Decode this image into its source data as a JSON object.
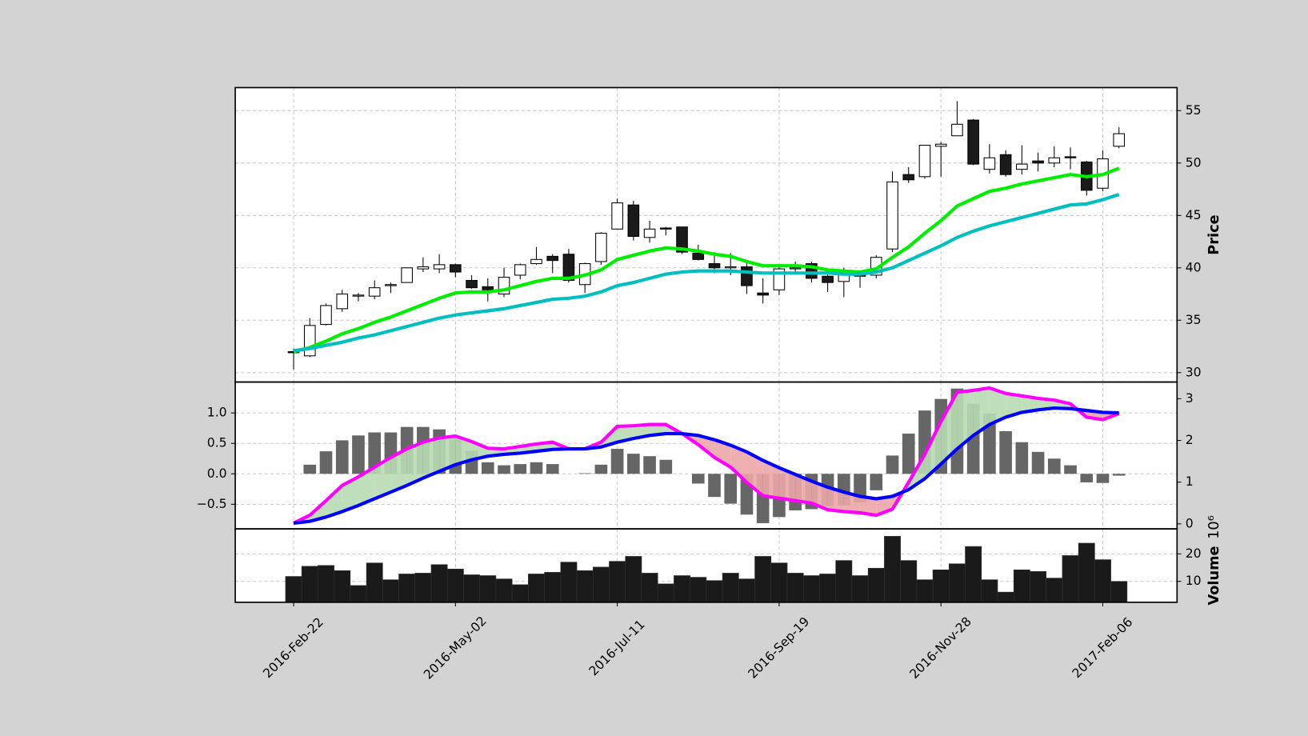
{
  "chart_data": [
    {
      "type": "candlestick",
      "ylabel": "Price",
      "open": [
        32.0,
        31.6,
        34.6,
        36.1,
        37.3,
        37.3,
        38.3,
        38.6,
        39.9,
        39.9,
        40.3,
        38.8,
        38.2,
        37.5,
        39.3,
        40.4,
        41.1,
        41.3,
        38.4,
        40.6,
        43.7,
        46.0,
        42.9,
        43.8,
        43.9,
        41.4,
        40.4,
        40.0,
        40.1,
        37.6,
        37.9,
        39.9,
        40.4,
        39.2,
        38.7,
        39.4,
        39.3,
        41.8,
        48.9,
        48.7,
        51.6,
        52.6,
        54.1,
        49.4,
        50.8,
        49.4,
        50.2,
        50.0,
        50.6,
        50.1,
        47.6,
        51.6
      ],
      "high": [
        32.3,
        35.2,
        36.6,
        37.9,
        37.6,
        38.8,
        38.6,
        40.0,
        41.0,
        41.3,
        40.4,
        39.3,
        39.0,
        40.0,
        40.4,
        42.0,
        41.3,
        41.8,
        40.5,
        43.4,
        46.6,
        46.4,
        44.5,
        43.9,
        43.9,
        42.2,
        41.5,
        41.4,
        40.6,
        39.0,
        40.2,
        40.6,
        40.6,
        39.5,
        40.0,
        39.7,
        41.2,
        49.2,
        49.6,
        51.7,
        52.0,
        55.9,
        54.2,
        51.8,
        51.2,
        51.7,
        51.0,
        51.6,
        51.5,
        50.2,
        51.2,
        53.4
      ],
      "low": [
        30.3,
        31.5,
        34.5,
        35.8,
        36.8,
        37.0,
        37.6,
        38.6,
        39.6,
        39.5,
        39.1,
        38.0,
        36.8,
        37.2,
        38.9,
        40.3,
        39.5,
        38.6,
        37.6,
        40.3,
        43.7,
        42.6,
        42.4,
        43.1,
        41.3,
        40.7,
        39.5,
        39.3,
        37.5,
        36.6,
        37.4,
        39.6,
        38.6,
        37.7,
        37.2,
        38.1,
        39.0,
        41.5,
        48.1,
        48.5,
        48.7,
        52.6,
        49.8,
        49.0,
        48.7,
        48.9,
        49.2,
        49.6,
        49.4,
        46.9,
        47.3,
        51.4
      ],
      "close": [
        31.9,
        34.5,
        36.4,
        37.5,
        37.4,
        38.1,
        38.4,
        40.0,
        40.1,
        40.3,
        39.6,
        38.1,
        37.9,
        39.1,
        40.3,
        40.8,
        40.7,
        38.8,
        40.4,
        43.3,
        46.2,
        43.0,
        43.7,
        43.7,
        41.5,
        40.8,
        40.0,
        40.1,
        38.3,
        37.4,
        39.9,
        40.0,
        39.0,
        38.6,
        39.6,
        39.2,
        41.0,
        48.2,
        48.4,
        51.7,
        51.8,
        53.7,
        49.9,
        50.5,
        48.9,
        49.9,
        50.0,
        50.5,
        50.5,
        47.4,
        50.4,
        52.8
      ],
      "up_color": "#ffffff",
      "down_color": "#1a1a1a",
      "series": [
        {
          "color": "#00ee00",
          "values": [
            32.0,
            32.4,
            33.0,
            33.7,
            34.2,
            34.8,
            35.3,
            35.9,
            36.5,
            37.1,
            37.6,
            37.7,
            37.7,
            37.9,
            38.3,
            38.7,
            39.0,
            39.0,
            39.3,
            39.8,
            40.8,
            41.2,
            41.6,
            41.9,
            41.8,
            41.6,
            41.3,
            41.1,
            40.6,
            40.2,
            40.2,
            40.2,
            40.1,
            39.8,
            39.7,
            39.6,
            39.9,
            41.0,
            42.0,
            43.3,
            44.5,
            45.9,
            46.6,
            47.3,
            47.6,
            48.0,
            48.3,
            48.6,
            48.9,
            48.7,
            48.9,
            49.5
          ]
        },
        {
          "color": "#00bfbf",
          "values": [
            32.1,
            32.3,
            32.6,
            32.9,
            33.3,
            33.6,
            34.0,
            34.4,
            34.8,
            35.2,
            35.5,
            35.7,
            35.9,
            36.1,
            36.4,
            36.7,
            37.0,
            37.1,
            37.3,
            37.7,
            38.3,
            38.6,
            39.0,
            39.4,
            39.6,
            39.7,
            39.7,
            39.7,
            39.6,
            39.5,
            39.5,
            39.5,
            39.5,
            39.5,
            39.4,
            39.4,
            39.6,
            40.0,
            40.7,
            41.4,
            42.1,
            42.9,
            43.5,
            44.0,
            44.4,
            44.8,
            45.2,
            45.6,
            46.0,
            46.1,
            46.5,
            47.0
          ]
        }
      ],
      "ylim": [
        29.1,
        57.2
      ],
      "yticks": [
        30,
        35,
        40,
        45,
        50,
        55
      ],
      "grid": true
    },
    {
      "type": "macd",
      "series": [
        {
          "color": "#ff00ff",
          "values": [
            -0.81,
            -0.68,
            -0.44,
            -0.19,
            -0.05,
            0.11,
            0.27,
            0.41,
            0.52,
            0.59,
            0.62,
            0.53,
            0.42,
            0.41,
            0.45,
            0.49,
            0.52,
            0.41,
            0.41,
            0.52,
            0.78,
            0.79,
            0.81,
            0.81,
            0.66,
            0.48,
            0.27,
            0.11,
            -0.14,
            -0.36,
            -0.4,
            -0.44,
            -0.48,
            -0.59,
            -0.62,
            -0.64,
            -0.68,
            -0.58,
            -0.14,
            0.32,
            0.86,
            1.34,
            1.37,
            1.41,
            1.32,
            1.28,
            1.24,
            1.21,
            1.15,
            0.93,
            0.89,
            0.99
          ]
        },
        {
          "color": "#0000ff",
          "values": [
            -0.81,
            -0.78,
            -0.71,
            -0.62,
            -0.52,
            -0.41,
            -0.3,
            -0.19,
            -0.07,
            0.04,
            0.15,
            0.23,
            0.29,
            0.32,
            0.34,
            0.37,
            0.4,
            0.41,
            0.41,
            0.44,
            0.52,
            0.58,
            0.63,
            0.66,
            0.66,
            0.63,
            0.56,
            0.47,
            0.36,
            0.22,
            0.1,
            -0.01,
            -0.12,
            -0.22,
            -0.3,
            -0.37,
            -0.41,
            -0.37,
            -0.26,
            -0.08,
            0.16,
            0.41,
            0.63,
            0.81,
            0.93,
            1.01,
            1.05,
            1.08,
            1.07,
            1.04,
            1.01,
            1.0
          ]
        }
      ],
      "histogram": {
        "color": "#666666",
        "values": [
          0,
          0.15,
          0.37,
          0.55,
          0.63,
          0.68,
          0.68,
          0.77,
          0.77,
          0.73,
          0.6,
          0.38,
          0.19,
          0.14,
          0.16,
          0.19,
          0.16,
          0,
          0.01,
          0.15,
          0.41,
          0.33,
          0.29,
          0.23,
          0,
          -0.16,
          -0.38,
          -0.49,
          -0.67,
          -0.81,
          -0.71,
          -0.6,
          -0.58,
          -0.53,
          -0.52,
          -0.47,
          -0.27,
          0.3,
          0.66,
          1.04,
          1.23,
          1.4,
          1.15,
          0.99,
          0.7,
          0.52,
          0.36,
          0.25,
          0.14,
          -0.14,
          -0.15,
          -0.03
        ]
      },
      "fill_colors": [
        "#b7dcb2",
        "#eba6a6"
      ],
      "ylim": [
        -0.904,
        1.507
      ],
      "yticks": [
        {
          "value": 1.0,
          "label": "1.0"
        },
        {
          "value": 0.5,
          "label": "0.5"
        },
        {
          "value": 0.0,
          "label": "0.0"
        },
        {
          "value": -0.5,
          "label": "−0.5"
        }
      ],
      "y2lim": [
        -0.12,
        3.4
      ],
      "y2ticks": [
        0,
        1,
        2,
        3
      ],
      "grid": true
    },
    {
      "type": "bar",
      "ylabel": "Volume",
      "offset_label": "10⁶",
      "categories": [
        "2016-Feb-22",
        null,
        null,
        null,
        null,
        null,
        null,
        null,
        null,
        null,
        "2016-May-02",
        null,
        null,
        null,
        null,
        null,
        null,
        null,
        null,
        null,
        "2016-Jul-11",
        null,
        null,
        null,
        null,
        null,
        null,
        null,
        null,
        null,
        "2016-Sep-19",
        null,
        null,
        null,
        null,
        null,
        null,
        null,
        null,
        null,
        "2016-Nov-28",
        null,
        null,
        null,
        null,
        null,
        null,
        null,
        null,
        null,
        "2017-Feb-06",
        null
      ],
      "values": [
        11.8,
        15.5,
        15.8,
        13.9,
        8.5,
        16.7,
        10.6,
        12.7,
        13.0,
        16.1,
        14.5,
        12.4,
        12.1,
        10.9,
        8.8,
        12.7,
        13.3,
        17.0,
        13.9,
        15.2,
        17.3,
        19.1,
        13.0,
        9.1,
        12.1,
        11.5,
        10.3,
        13.0,
        10.9,
        19.1,
        16.7,
        13.0,
        12.1,
        12.7,
        17.6,
        12.1,
        14.8,
        26.4,
        17.6,
        10.6,
        14.2,
        16.4,
        22.7,
        10.6,
        6.1,
        14.2,
        13.6,
        11.2,
        19.4,
        23.9,
        17.9,
        10.0
      ],
      "color": "#1a1a1a",
      "ylim": [
        2.4,
        29.1
      ],
      "yticks": [
        10,
        20
      ],
      "grid": true
    }
  ]
}
